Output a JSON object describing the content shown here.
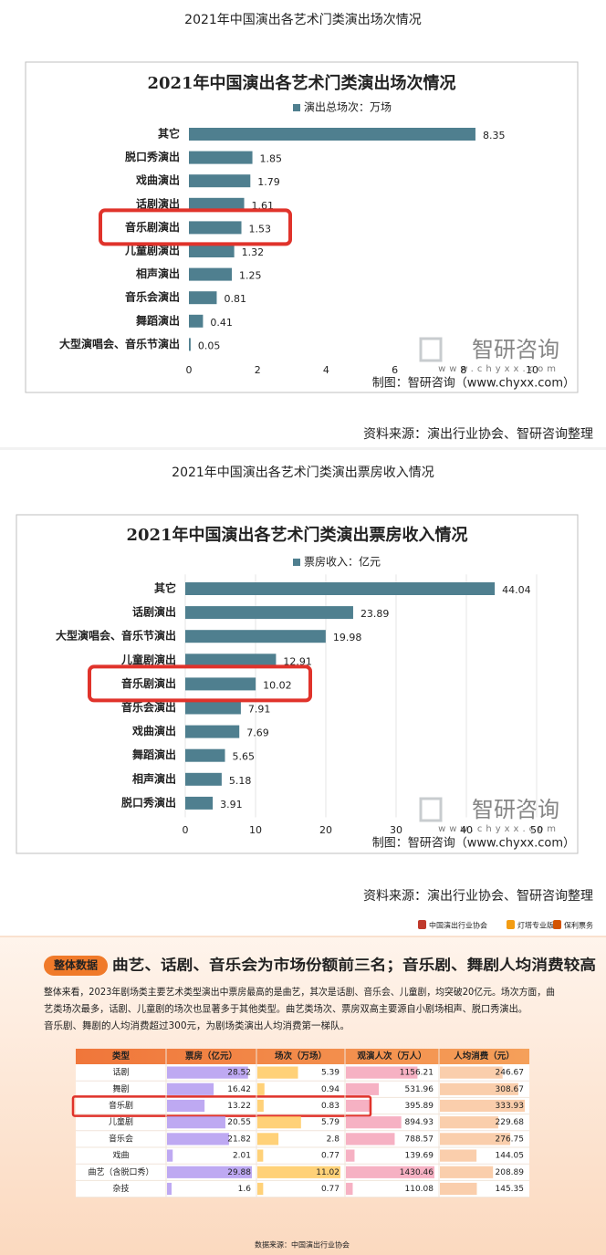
{
  "chart_data": [
    {
      "type": "bar",
      "orientation": "horizontal",
      "caption": "2021年中国演出各艺术门类演出场次情况",
      "title": "2021年中国演出各艺术门类演出场次情况",
      "categories": [
        "其它",
        "脱口秀演出",
        "戏曲演出",
        "话剧演出",
        "音乐剧演出",
        "儿童剧演出",
        "相声演出",
        "音乐会演出",
        "舞蹈演出",
        "大型演唱会、音乐节演出"
      ],
      "series": [
        {
          "name": "演出总场次：万场",
          "color": "#4f7f8f",
          "values": [
            8.35,
            1.85,
            1.79,
            1.61,
            1.53,
            1.32,
            1.25,
            0.81,
            0.41,
            0.05
          ]
        }
      ],
      "xlim": [
        0,
        10
      ],
      "xticks": [
        0,
        2,
        4,
        6,
        8,
        10
      ],
      "grid": false,
      "highlight": 4,
      "highlight_color": "#e0332b",
      "watermark": {
        "brand": "智研咨询",
        "url": "www.chyxx.com"
      },
      "credit": "制图：智研咨询（www.chyxx.com）",
      "source": "资料来源：演出行业协会、智研咨询整理"
    },
    {
      "type": "bar",
      "orientation": "horizontal",
      "caption": "2021年中国演出各艺术门类演出票房收入情况",
      "title": "2021年中国演出各艺术门类演出票房收入情况",
      "categories": [
        "其它",
        "话剧演出",
        "大型演唱会、音乐节演出",
        "儿童剧演出",
        "音乐剧演出",
        "音乐会演出",
        "戏曲演出",
        "舞蹈演出",
        "相声演出",
        "脱口秀演出"
      ],
      "series": [
        {
          "name": "票房收入：亿元",
          "color": "#4f7f8f",
          "values": [
            44.04,
            23.89,
            19.98,
            12.91,
            10.02,
            7.91,
            7.69,
            5.65,
            5.18,
            3.91
          ]
        }
      ],
      "xlim": [
        0,
        50
      ],
      "xticks": [
        0,
        10,
        20,
        30,
        40,
        50
      ],
      "grid": true,
      "highlight": 4,
      "highlight_color": "#e0332b",
      "watermark": {
        "brand": "智研咨询",
        "url": "www.chyxx.com"
      },
      "credit": "制图：智研咨询（www.chyxx.com）",
      "source": "资料来源：演出行业协会、智研咨询整理"
    }
  ],
  "infographic": {
    "logos": [
      "中国演出行业协会",
      "灯塔专业版",
      "保利票务"
    ],
    "tag": "整体数据",
    "headline": "曲艺、话剧、音乐会为市场份额前三名；音乐剧、舞剧人均消费较高",
    "paragraph": [
      "整体来看，2023年剧场类主要艺术类型演出中票房最高的是曲艺，其次是话剧、音乐会、儿童剧，均突破20亿元。场次方面，曲",
      "艺类场次最多，话剧、儿童剧的场次也显著多于其他类型。曲艺类场次、票房双高主要源自小剧场相声、脱口秀演出。",
      "音乐剧、舞剧的人均消费超过300元，为剧场类演出人均消费第一梯队。"
    ],
    "table": {
      "header": [
        "类型",
        "票房（亿元）",
        "场次（万场）",
        "观演人次（万人）",
        "人均消费（元）"
      ],
      "bar_colors": [
        "#b39af0",
        "#ffc960",
        "#f4a3b8",
        "#f9c69e"
      ],
      "rows": [
        [
          "话剧",
          28.52,
          5.39,
          1156.21,
          246.67
        ],
        [
          "舞剧",
          16.42,
          0.94,
          531.96,
          308.67
        ],
        [
          "音乐剧",
          13.22,
          0.83,
          395.89,
          333.93
        ],
        [
          "儿童剧",
          20.55,
          5.79,
          894.93,
          229.68
        ],
        [
          "音乐会",
          21.82,
          2.8,
          788.57,
          276.75
        ],
        [
          "戏曲",
          2.01,
          0.77,
          139.69,
          144.05
        ],
        [
          "曲艺（含脱口秀）",
          29.88,
          11.02,
          1430.46,
          208.89
        ],
        [
          "杂技",
          1.6,
          0.77,
          110.08,
          145.35
        ]
      ],
      "highlight": 2
    },
    "source": "数据来源：中国演出行业协会"
  }
}
